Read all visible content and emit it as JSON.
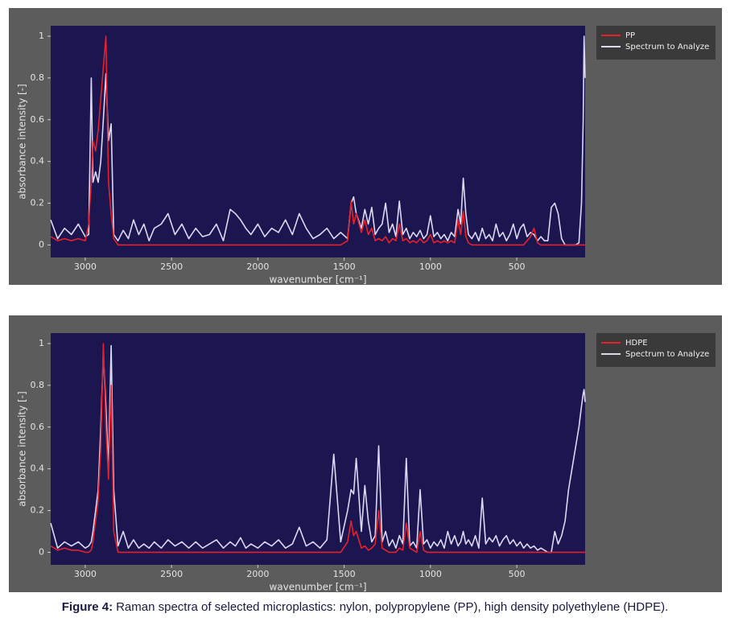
{
  "chart_data": [
    {
      "type": "line",
      "xlabel": "wavenumber [cm⁻¹]",
      "ylabel": "absorbance intensity [-]",
      "x": [
        3200,
        3160,
        3120,
        3080,
        3040,
        3000,
        2980,
        2965,
        2955,
        2940,
        2925,
        2910,
        2895,
        2880,
        2865,
        2850,
        2835,
        2810,
        2780,
        2750,
        2720,
        2690,
        2660,
        2630,
        2600,
        2560,
        2520,
        2480,
        2440,
        2400,
        2360,
        2320,
        2280,
        2240,
        2200,
        2160,
        2130,
        2100,
        2070,
        2040,
        2000,
        1960,
        1920,
        1880,
        1840,
        1800,
        1760,
        1720,
        1680,
        1640,
        1600,
        1560,
        1520,
        1480,
        1460,
        1445,
        1430,
        1400,
        1380,
        1360,
        1340,
        1320,
        1300,
        1280,
        1260,
        1240,
        1220,
        1200,
        1180,
        1160,
        1140,
        1120,
        1100,
        1080,
        1060,
        1040,
        1020,
        1000,
        980,
        960,
        940,
        920,
        900,
        880,
        860,
        840,
        825,
        810,
        795,
        780,
        760,
        740,
        720,
        700,
        680,
        660,
        640,
        620,
        600,
        580,
        560,
        540,
        520,
        500,
        480,
        460,
        440,
        420,
        400,
        380,
        360,
        340,
        320,
        300,
        280,
        260,
        240,
        220,
        200,
        180,
        160,
        140,
        125,
        115,
        110,
        104
      ],
      "series": [
        {
          "name": "PP",
          "color": "#e8202a",
          "values": [
            0.04,
            0.02,
            0.03,
            0.02,
            0.03,
            0.02,
            0.1,
            0.3,
            0.5,
            0.45,
            0.55,
            0.7,
            0.85,
            1.0,
            0.3,
            0.15,
            0.03,
            0,
            0,
            0,
            0,
            0,
            0,
            0,
            0,
            0,
            0,
            0,
            0,
            0,
            0,
            0,
            0,
            0,
            0,
            0,
            0,
            0,
            0,
            0,
            0,
            0,
            0,
            0,
            0,
            0,
            0,
            0,
            0,
            0,
            0,
            0,
            0,
            0.02,
            0.21,
            0.1,
            0.15,
            0.06,
            0.12,
            0.05,
            0.08,
            0.02,
            0.03,
            0.02,
            0.04,
            0.01,
            0.03,
            0.02,
            0.1,
            0.02,
            0.03,
            0.01,
            0.02,
            0.01,
            0.03,
            0.01,
            0.02,
            0.05,
            0.01,
            0.02,
            0.01,
            0.02,
            0.01,
            0.02,
            0.01,
            0.12,
            0.05,
            0.16,
            0.04,
            0.01,
            0,
            0,
            0,
            0,
            0,
            0,
            0,
            0,
            0,
            0,
            0,
            0,
            0,
            0,
            0,
            0,
            0.02,
            0.04,
            0.08,
            0.01,
            0,
            0,
            0,
            0,
            0,
            0,
            0,
            0,
            0,
            0,
            0,
            0,
            0,
            0,
            0,
            0
          ]
        },
        {
          "name": "Spectrum to Analyze",
          "color": "#dcd8f2",
          "values": [
            0.12,
            0.03,
            0.08,
            0.05,
            0.1,
            0.04,
            0.05,
            0.8,
            0.3,
            0.35,
            0.3,
            0.4,
            0.6,
            0.82,
            0.5,
            0.58,
            0.05,
            0.02,
            0.07,
            0.03,
            0.12,
            0.05,
            0.1,
            0.02,
            0.08,
            0.1,
            0.15,
            0.05,
            0.1,
            0.03,
            0.08,
            0.04,
            0.05,
            0.1,
            0.02,
            0.17,
            0.15,
            0.12,
            0.08,
            0.05,
            0.1,
            0.04,
            0.08,
            0.06,
            0.12,
            0.05,
            0.15,
            0.08,
            0.03,
            0.05,
            0.08,
            0.03,
            0.06,
            0.03,
            0.2,
            0.23,
            0.15,
            0.08,
            0.17,
            0.1,
            0.18,
            0.05,
            0.08,
            0.1,
            0.2,
            0.06,
            0.1,
            0.04,
            0.21,
            0.05,
            0.08,
            0.03,
            0.06,
            0.04,
            0.07,
            0.03,
            0.05,
            0.14,
            0.04,
            0.06,
            0.03,
            0.05,
            0.02,
            0.06,
            0.04,
            0.17,
            0.1,
            0.32,
            0.15,
            0.05,
            0.03,
            0.06,
            0.02,
            0.08,
            0.03,
            0.05,
            0.02,
            0.1,
            0.04,
            0.06,
            0.02,
            0.05,
            0.1,
            0.03,
            0.08,
            0.1,
            0.04,
            0.06,
            0.05,
            0.02,
            0.04,
            0.02,
            0.02,
            0.18,
            0.2,
            0.15,
            0.03,
            0,
            0,
            0,
            0,
            0.01,
            0.2,
            0.6,
            1.0,
            0.8
          ]
        }
      ],
      "xlim": [
        3200,
        104
      ],
      "ylim": [
        -0.06,
        1.05
      ],
      "xticks": [
        3000,
        2500,
        2000,
        1500,
        1000,
        500
      ],
      "yticks": [
        0,
        0.2,
        0.4,
        0.6,
        0.8,
        1
      ],
      "grid": false,
      "legend": "outside-right"
    },
    {
      "type": "line",
      "xlabel": "wavenumber [cm⁻¹]",
      "ylabel": "absorbance intensity [-]",
      "x": [
        3200,
        3160,
        3120,
        3080,
        3040,
        3000,
        2980,
        2965,
        2955,
        2940,
        2925,
        2910,
        2895,
        2880,
        2865,
        2850,
        2835,
        2810,
        2780,
        2750,
        2720,
        2690,
        2660,
        2630,
        2600,
        2560,
        2520,
        2480,
        2440,
        2400,
        2360,
        2320,
        2280,
        2240,
        2200,
        2160,
        2130,
        2100,
        2070,
        2040,
        2000,
        1960,
        1920,
        1880,
        1840,
        1800,
        1760,
        1720,
        1680,
        1640,
        1600,
        1560,
        1520,
        1480,
        1460,
        1445,
        1430,
        1400,
        1380,
        1360,
        1340,
        1320,
        1300,
        1280,
        1260,
        1240,
        1220,
        1200,
        1180,
        1160,
        1140,
        1120,
        1100,
        1080,
        1060,
        1040,
        1020,
        1000,
        980,
        960,
        940,
        920,
        900,
        880,
        860,
        840,
        825,
        810,
        795,
        780,
        760,
        740,
        720,
        700,
        680,
        660,
        640,
        620,
        600,
        580,
        560,
        540,
        520,
        500,
        480,
        460,
        440,
        420,
        400,
        380,
        360,
        340,
        320,
        300,
        280,
        260,
        240,
        220,
        200,
        180,
        160,
        140,
        125,
        115,
        110,
        104
      ],
      "series": [
        {
          "name": "HDPE",
          "color": "#e8202a",
          "values": [
            0.03,
            0.01,
            0.02,
            0.01,
            0.01,
            0,
            0,
            0.01,
            0.05,
            0.15,
            0.25,
            0.5,
            1.0,
            0.6,
            0.35,
            0.8,
            0.1,
            0,
            0,
            0,
            0,
            0,
            0,
            0,
            0,
            0,
            0,
            0,
            0,
            0,
            0,
            0,
            0,
            0,
            0,
            0,
            0,
            0,
            0,
            0,
            0,
            0,
            0,
            0,
            0,
            0,
            0,
            0,
            0,
            0,
            0,
            0,
            0,
            0.05,
            0.15,
            0.08,
            0.1,
            0.02,
            0.03,
            0.01,
            0.02,
            0.04,
            0.2,
            0.02,
            0.01,
            0,
            0,
            0,
            0.02,
            0.01,
            0.14,
            0.02,
            0.01,
            0,
            0.1,
            0.01,
            0,
            0,
            0,
            0,
            0,
            0,
            0,
            0,
            0,
            0,
            0,
            0,
            0,
            0,
            0,
            0,
            0,
            0,
            0,
            0,
            0,
            0,
            0,
            0,
            0,
            0,
            0,
            0,
            0,
            0,
            0,
            0,
            0,
            0,
            0,
            0,
            0,
            0,
            0,
            0,
            0,
            0,
            0,
            0,
            0,
            0,
            0,
            0,
            0,
            0
          ]
        },
        {
          "name": "Spectrum to Analyze",
          "color": "#dcd8f2",
          "values": [
            0.14,
            0.02,
            0.05,
            0.03,
            0.05,
            0.02,
            0.03,
            0.05,
            0.1,
            0.2,
            0.3,
            0.6,
            0.95,
            0.7,
            0.4,
            0.99,
            0.3,
            0.03,
            0.1,
            0.02,
            0.06,
            0.02,
            0.04,
            0.02,
            0.05,
            0.02,
            0.06,
            0.03,
            0.05,
            0.02,
            0.05,
            0.02,
            0.04,
            0.06,
            0.02,
            0.05,
            0.03,
            0.07,
            0.02,
            0.04,
            0.02,
            0.05,
            0.03,
            0.06,
            0.02,
            0.04,
            0.12,
            0.03,
            0.05,
            0.02,
            0.06,
            0.47,
            0.05,
            0.2,
            0.3,
            0.28,
            0.45,
            0.1,
            0.32,
            0.15,
            0.05,
            0.08,
            0.51,
            0.05,
            0.1,
            0.03,
            0.06,
            0.02,
            0.08,
            0.04,
            0.45,
            0.03,
            0.05,
            0.02,
            0.3,
            0.04,
            0.06,
            0.02,
            0.05,
            0.03,
            0.06,
            0.02,
            0.1,
            0.04,
            0.08,
            0.03,
            0.05,
            0.1,
            0.04,
            0.06,
            0.03,
            0.08,
            0.02,
            0.26,
            0.04,
            0.07,
            0.05,
            0.08,
            0.03,
            0.06,
            0.08,
            0.04,
            0.06,
            0.03,
            0.05,
            0.02,
            0.04,
            0.02,
            0.03,
            0.01,
            0.02,
            0.01,
            0,
            0,
            0.1,
            0.04,
            0.08,
            0.15,
            0.3,
            0.4,
            0.5,
            0.6,
            0.7,
            0.76,
            0.78,
            0.72
          ]
        }
      ],
      "xlim": [
        3200,
        104
      ],
      "ylim": [
        -0.06,
        1.05
      ],
      "xticks": [
        3000,
        2500,
        2000,
        1500,
        1000,
        500
      ],
      "yticks": [
        0,
        0.2,
        0.4,
        0.6,
        0.8,
        1
      ],
      "grid": false,
      "legend": "outside-right"
    }
  ],
  "caption": {
    "label": "Figure 4:",
    "text": "Raman spectra of selected microplastics: nylon, polypropylene (PP), high density polyethylene (HDPE)."
  }
}
